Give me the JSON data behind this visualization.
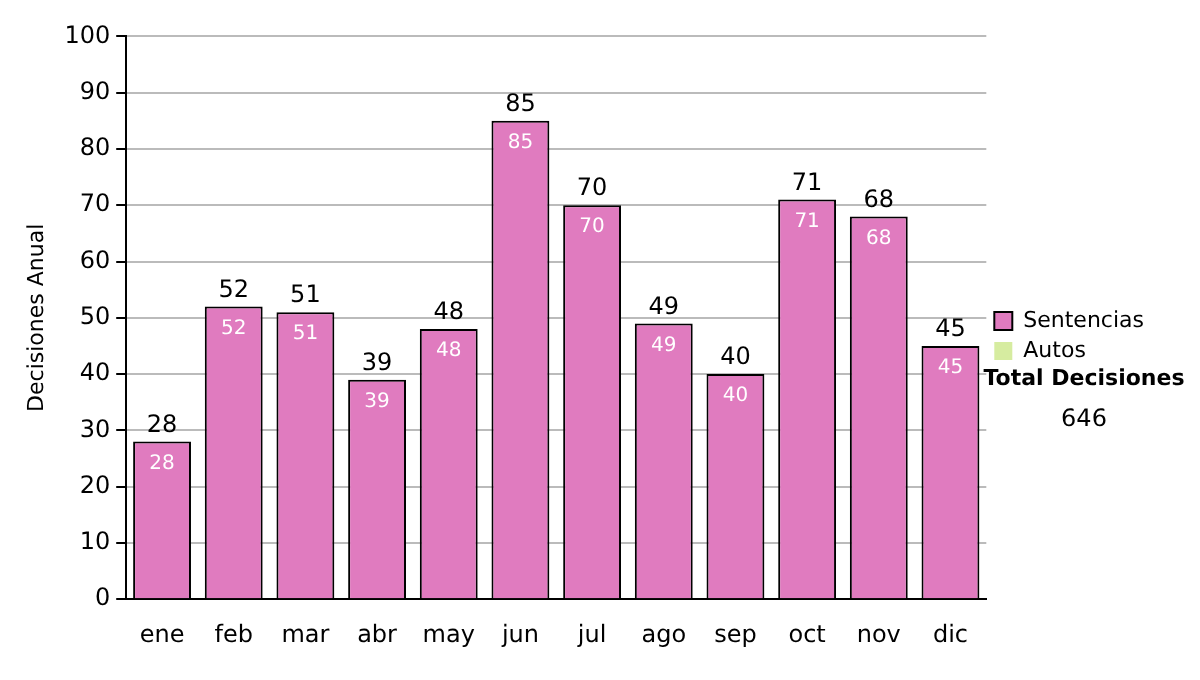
{
  "chart_data": {
    "type": "bar",
    "ylabel": "Decisiones Anual",
    "categories": [
      "ene",
      "feb",
      "mar",
      "abr",
      "may",
      "jun",
      "jul",
      "ago",
      "sep",
      "oct",
      "nov",
      "dic"
    ],
    "series": [
      {
        "name": "Sentencias",
        "color": "#e07bbf",
        "values": [
          28,
          52,
          51,
          39,
          48,
          85,
          70,
          49,
          40,
          71,
          68,
          45
        ],
        "value_labels": [
          "28",
          "52",
          "51",
          "39",
          "48",
          "85",
          "70",
          "49",
          "40",
          "71",
          "68",
          "45"
        ]
      },
      {
        "name": "Autos",
        "color": "#d6eca0",
        "values": [
          0,
          0,
          0,
          0,
          0,
          0,
          0,
          0,
          0,
          0,
          0,
          0
        ]
      }
    ],
    "stacked": true,
    "totals": [
      "28",
      "52",
      "51",
      "39",
      "48",
      "85",
      "70",
      "49",
      "40",
      "71",
      "68",
      "45"
    ],
    "ylim": [
      0,
      100
    ],
    "yticks": [
      0,
      10,
      20,
      30,
      40,
      50,
      60,
      70,
      80,
      90,
      100
    ],
    "grid": "y",
    "legend": "right",
    "annotations": [
      "Total Decisiones",
      "646"
    ]
  }
}
